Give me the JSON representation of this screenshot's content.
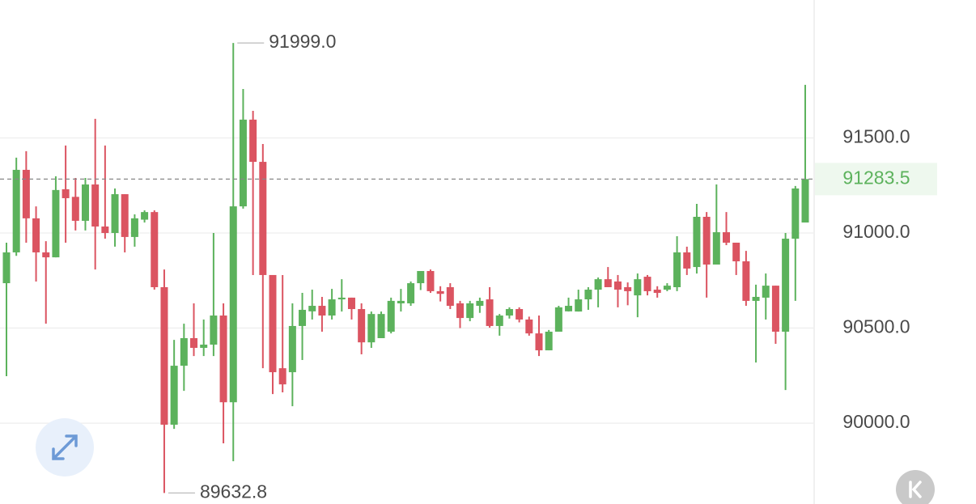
{
  "chart_data": {
    "type": "candlestick",
    "up_color": "#5cb25c",
    "down_color": "#db5461",
    "grid": true,
    "ylim": [
      89575,
      92225
    ],
    "yticks": [
      {
        "value": 90000,
        "label": "90000.0"
      },
      {
        "value": 90500,
        "label": "90500.0"
      },
      {
        "value": 91000,
        "label": "91000.0"
      },
      {
        "value": 91500,
        "label": "91500.0"
      }
    ],
    "open": [
      90736,
      90898,
      91332,
      91077,
      90898,
      90872,
      91230,
      91190,
      91064,
      91255,
      91034,
      91000,
      91204,
      90979,
      91070,
      91110,
      90715,
      89992,
      90302,
      90447,
      90396,
      90413,
      90566,
      90110,
      91140,
      91596,
      91374,
      90779,
      90289,
      90268,
      90511,
      90588,
      90617,
      90566,
      90651,
      90660,
      90600,
      90425,
      90447,
      90481,
      90630,
      90630,
      90736,
      90800,
      90694,
      90715,
      90630,
      90553,
      90617,
      90651,
      90511,
      90566,
      90600,
      90545,
      90472,
      90383,
      90481,
      90588,
      90587,
      90651,
      90702,
      90757,
      90745,
      90715,
      90672,
      90770,
      90702,
      90702,
      90715,
      90898,
      90821,
      91085,
      90834,
      91004,
      90949,
      90851,
      90643,
      90660,
      90723,
      90481,
      90970,
      91055
    ],
    "high": [
      90949,
      91396,
      91430,
      91140,
      90957,
      91298,
      91460,
      91289,
      91289,
      91600,
      91460,
      91234,
      91204,
      91098,
      91119,
      91119,
      90808,
      90438,
      90523,
      90630,
      90545,
      91000,
      90630,
      91999,
      91757,
      91642,
      91468,
      90779,
      90779,
      90630,
      90685,
      90702,
      90664,
      90706,
      90757,
      90660,
      90630,
      90587,
      90587,
      90660,
      90706,
      90745,
      90800,
      90808,
      90720,
      90736,
      90643,
      90643,
      90660,
      90715,
      90574,
      90609,
      90609,
      90560,
      90566,
      90490,
      90617,
      90660,
      90702,
      90715,
      90766,
      90821,
      90779,
      90740,
      90787,
      90779,
      90720,
      90736,
      90983,
      90928,
      91153,
      91110,
      91255,
      91110,
      90949,
      90906,
      90728,
      90787,
      90723,
      91000,
      91247,
      91779
    ],
    "low": [
      90247,
      90880,
      90949,
      90745,
      90523,
      90872,
      90949,
      91013,
      91013,
      90808,
      90970,
      90928,
      90898,
      90928,
      91055,
      90702,
      89632.8,
      89970,
      90170,
      90353,
      90353,
      90353,
      89894,
      89800,
      91128,
      90779,
      90289,
      90153,
      90162,
      90089,
      90332,
      90545,
      90481,
      90545,
      90587,
      90545,
      90362,
      90396,
      90447,
      90472,
      90587,
      90617,
      90700,
      90685,
      90640,
      90600,
      90500,
      90536,
      90580,
      90502,
      90460,
      90550,
      90530,
      90460,
      90353,
      90383,
      90481,
      90587,
      90587,
      90596,
      90609,
      90715,
      90609,
      90620,
      90557,
      90672,
      90660,
      90694,
      90694,
      90779,
      90787,
      90660,
      90834,
      90936,
      90779,
      90617,
      90319,
      90545,
      90417,
      90174,
      90643,
      91055
    ],
    "close": [
      90898,
      91332,
      91077,
      90898,
      90872,
      91226,
      91183,
      91064,
      91255,
      91034,
      91000,
      91204,
      90979,
      91077,
      91110,
      90715,
      89992,
      90302,
      90447,
      90396,
      90413,
      90566,
      90110,
      91140,
      91596,
      91374,
      90779,
      90268,
      90204,
      90511,
      90596,
      90617,
      90566,
      90651,
      90660,
      90600,
      90425,
      90574,
      90574,
      90643,
      90643,
      90736,
      90800,
      90694,
      90680,
      90617,
      90553,
      90630,
      90643,
      90511,
      90566,
      90600,
      90545,
      90472,
      90383,
      90481,
      90609,
      90617,
      90651,
      90702,
      90757,
      90715,
      90702,
      90694,
      90757,
      90694,
      90685,
      90723,
      90898,
      90813,
      91085,
      90834,
      91004,
      90949,
      90851,
      90643,
      90664,
      90723,
      90481,
      90970,
      91234,
      91283.5
    ],
    "annotations": [
      {
        "value": 91999,
        "label": "91999.0"
      },
      {
        "value": 89632.8,
        "label": "89632.8"
      }
    ],
    "last_price": 91283.5
  }
}
